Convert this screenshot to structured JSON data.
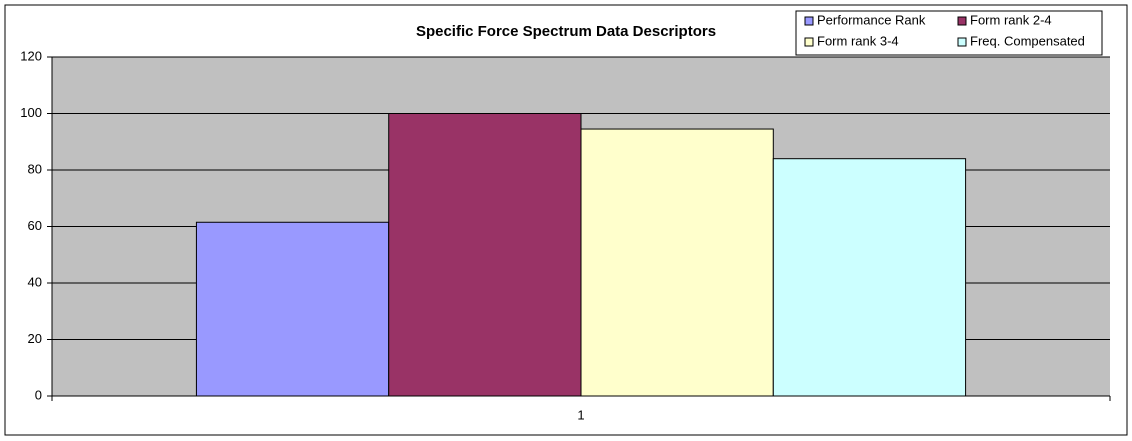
{
  "chart_data": {
    "type": "bar",
    "title": "Specific Force Spectrum Data Descriptors",
    "categories": [
      "1"
    ],
    "series": [
      {
        "name": "Performance Rank",
        "color": "#9999ff",
        "values": [
          61.5
        ]
      },
      {
        "name": "Form rank 2-4",
        "color": "#993366",
        "values": [
          100
        ]
      },
      {
        "name": "Form rank 3-4",
        "color": "#ffffcc",
        "values": [
          94.5
        ]
      },
      {
        "name": "Freq. Compensated",
        "color": "#ccffff",
        "values": [
          84
        ]
      }
    ],
    "ylim": [
      0,
      120
    ],
    "yticks": [
      0,
      20,
      40,
      60,
      80,
      100,
      120
    ],
    "grid": true,
    "legend": "top-right"
  }
}
